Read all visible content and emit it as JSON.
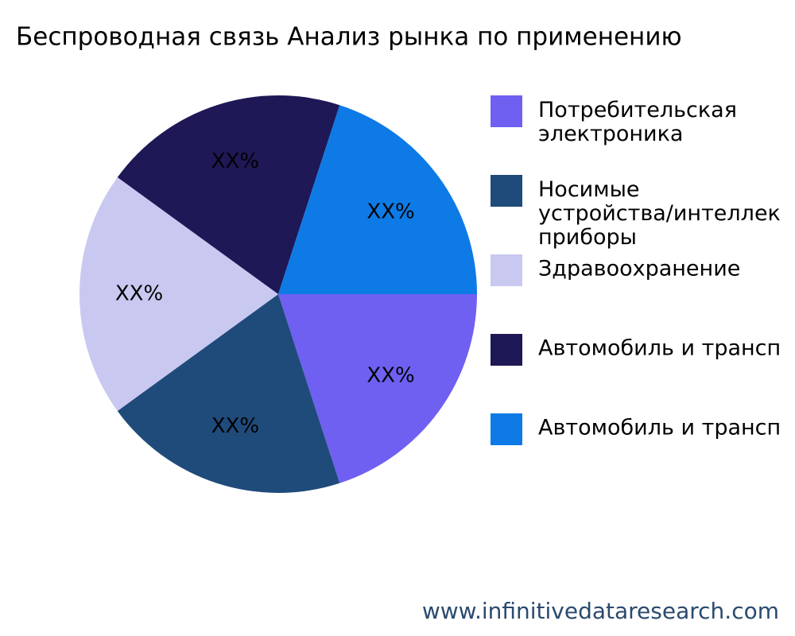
{
  "chart_data": {
    "type": "pie",
    "title": "Беспроводная связь Анализ рынка по применению",
    "categories": [
      "Потребительская\nэлектроника",
      "Носимые\nустройства/интеллек\nприборы",
      "Здравоохранение",
      "Автомобиль и трансп",
      "Автомобиль и трансп"
    ],
    "values": [
      20,
      20,
      20,
      20,
      20
    ],
    "value_labels": [
      "XX%",
      "XX%",
      "XX%",
      "XX%",
      "XX%"
    ],
    "colors": [
      "#6f60f2",
      "#1f4b7b",
      "#c9c8f1",
      "#1e1856",
      "#0d7ae6"
    ],
    "legend": "right"
  },
  "watermark": "www.infinitivedataresearch.com"
}
